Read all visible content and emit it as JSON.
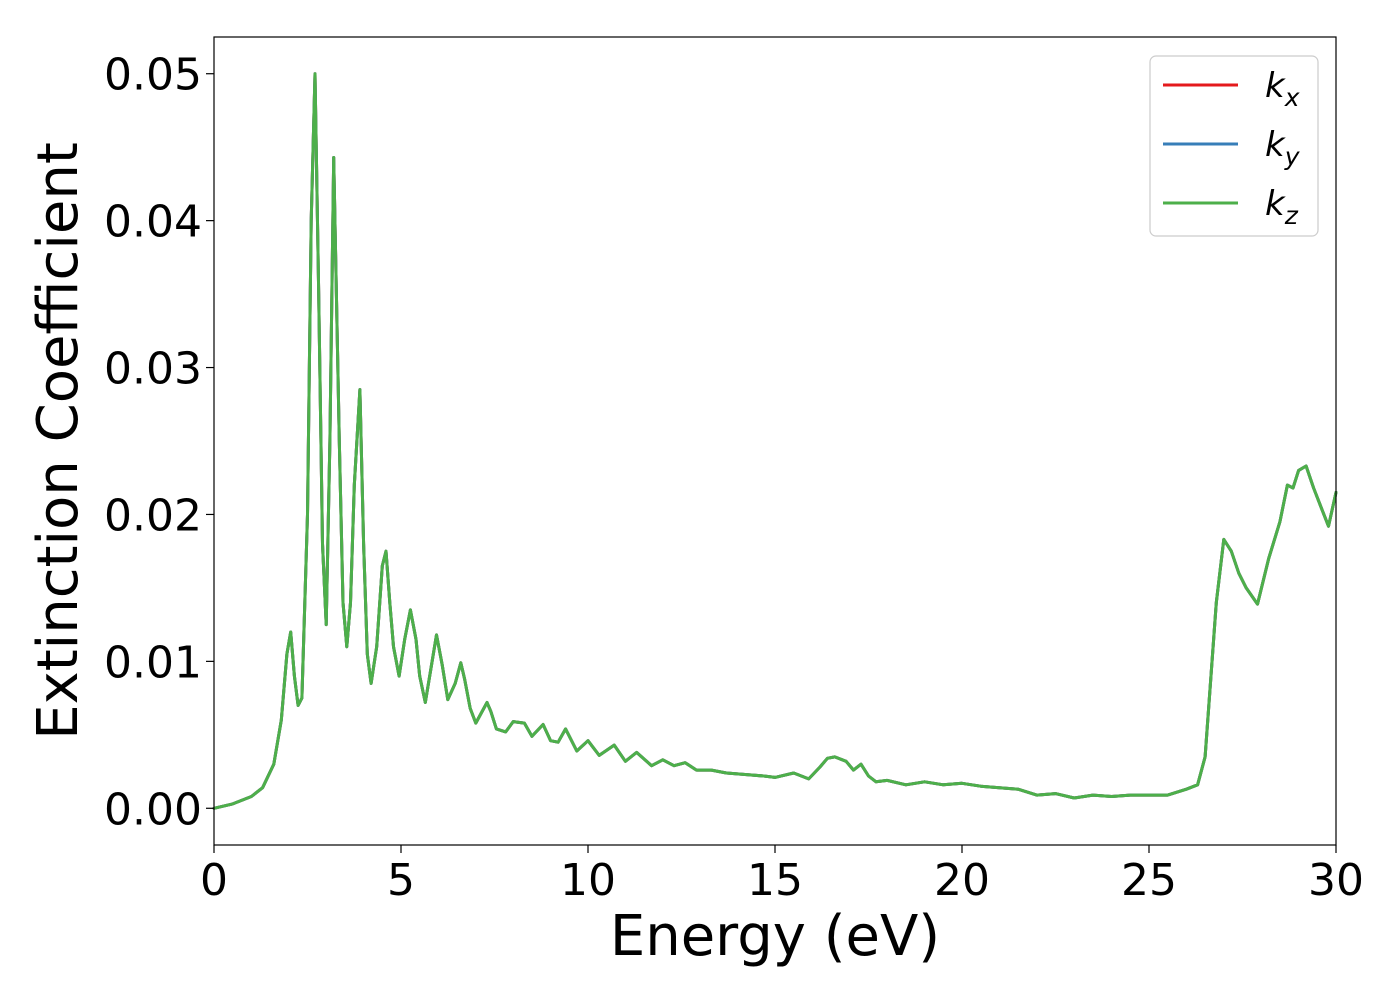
{
  "chart_data": {
    "type": "line",
    "xlabel": "Energy (eV)",
    "ylabel": "Extinction Coefficient",
    "xlim": [
      0,
      30
    ],
    "ylim": [
      -0.0025,
      0.0525
    ],
    "xticks": [
      0,
      5,
      10,
      15,
      20,
      25,
      30
    ],
    "xtick_labels": [
      "0",
      "5",
      "10",
      "15",
      "20",
      "25",
      "30"
    ],
    "yticks": [
      0.0,
      0.01,
      0.02,
      0.03,
      0.04,
      0.05
    ],
    "ytick_labels": [
      "0.00",
      "0.01",
      "0.02",
      "0.03",
      "0.04",
      "0.05"
    ],
    "grid": false,
    "legend_position": "top-right",
    "x": [
      0.0,
      0.5,
      1.0,
      1.3,
      1.6,
      1.8,
      1.95,
      2.05,
      2.15,
      2.25,
      2.35,
      2.5,
      2.6,
      2.7,
      2.8,
      2.9,
      3.0,
      3.1,
      3.2,
      3.35,
      3.45,
      3.55,
      3.65,
      3.75,
      3.9,
      4.0,
      4.1,
      4.2,
      4.35,
      4.5,
      4.6,
      4.7,
      4.8,
      4.95,
      5.1,
      5.25,
      5.4,
      5.5,
      5.65,
      5.8,
      5.95,
      6.1,
      6.25,
      6.45,
      6.6,
      6.7,
      6.85,
      7.0,
      7.3,
      7.4,
      7.55,
      7.8,
      8.0,
      8.3,
      8.5,
      8.8,
      9.0,
      9.2,
      9.4,
      9.7,
      10.0,
      10.3,
      10.7,
      11.0,
      11.3,
      11.7,
      12.0,
      12.3,
      12.6,
      12.9,
      13.3,
      13.7,
      14.2,
      14.7,
      15.0,
      15.5,
      15.9,
      16.2,
      16.4,
      16.6,
      16.9,
      17.1,
      17.3,
      17.5,
      17.7,
      18.0,
      18.5,
      19.0,
      19.5,
      20.0,
      20.5,
      21.0,
      21.5,
      22.0,
      22.5,
      23.0,
      23.5,
      24.0,
      24.5,
      25.0,
      25.5,
      26.0,
      26.3,
      26.5,
      26.8,
      27.0,
      27.2,
      27.4,
      27.6,
      27.9,
      28.2,
      28.5,
      28.7,
      28.85,
      29.0,
      29.2,
      29.4,
      29.6,
      29.8,
      30.0
    ],
    "series": [
      {
        "name": "k_x",
        "color": "#e41a1c",
        "y": [
          0.0,
          0.0003,
          0.0008,
          0.0014,
          0.003,
          0.006,
          0.0105,
          0.012,
          0.009,
          0.007,
          0.0075,
          0.02,
          0.04,
          0.05,
          0.035,
          0.018,
          0.0125,
          0.025,
          0.0443,
          0.025,
          0.014,
          0.011,
          0.014,
          0.022,
          0.0285,
          0.018,
          0.0105,
          0.0085,
          0.011,
          0.0165,
          0.0175,
          0.014,
          0.011,
          0.009,
          0.0115,
          0.0135,
          0.0115,
          0.009,
          0.0072,
          0.0095,
          0.0118,
          0.0098,
          0.0074,
          0.0085,
          0.0099,
          0.0088,
          0.0068,
          0.0058,
          0.0072,
          0.0066,
          0.0054,
          0.0052,
          0.0059,
          0.0058,
          0.0049,
          0.0057,
          0.0046,
          0.0045,
          0.0054,
          0.0039,
          0.0046,
          0.0036,
          0.0043,
          0.0032,
          0.0038,
          0.0029,
          0.0033,
          0.0029,
          0.0031,
          0.0026,
          0.0026,
          0.0024,
          0.0023,
          0.0022,
          0.0021,
          0.0024,
          0.002,
          0.0028,
          0.0034,
          0.0035,
          0.0032,
          0.0026,
          0.003,
          0.0022,
          0.0018,
          0.0019,
          0.0016,
          0.0018,
          0.0016,
          0.0017,
          0.0015,
          0.0014,
          0.0013,
          0.0009,
          0.001,
          0.0007,
          0.0009,
          0.0008,
          0.0009,
          0.0009,
          0.0009,
          0.0013,
          0.0016,
          0.0035,
          0.014,
          0.0183,
          0.0175,
          0.016,
          0.015,
          0.0139,
          0.017,
          0.0195,
          0.022,
          0.0218,
          0.023,
          0.0233,
          0.0218,
          0.0205,
          0.0192,
          0.0215
        ]
      },
      {
        "name": "k_y",
        "color": "#377eb8",
        "y": [
          0.0,
          0.0003,
          0.0008,
          0.0014,
          0.003,
          0.006,
          0.0105,
          0.012,
          0.009,
          0.007,
          0.0075,
          0.02,
          0.04,
          0.05,
          0.035,
          0.018,
          0.0125,
          0.025,
          0.0443,
          0.025,
          0.014,
          0.011,
          0.014,
          0.022,
          0.0285,
          0.018,
          0.0105,
          0.0085,
          0.011,
          0.0165,
          0.0175,
          0.014,
          0.011,
          0.009,
          0.0115,
          0.0135,
          0.0115,
          0.009,
          0.0072,
          0.0095,
          0.0118,
          0.0098,
          0.0074,
          0.0085,
          0.0099,
          0.0088,
          0.0068,
          0.0058,
          0.0072,
          0.0066,
          0.0054,
          0.0052,
          0.0059,
          0.0058,
          0.0049,
          0.0057,
          0.0046,
          0.0045,
          0.0054,
          0.0039,
          0.0046,
          0.0036,
          0.0043,
          0.0032,
          0.0038,
          0.0029,
          0.0033,
          0.0029,
          0.0031,
          0.0026,
          0.0026,
          0.0024,
          0.0023,
          0.0022,
          0.0021,
          0.0024,
          0.002,
          0.0028,
          0.0034,
          0.0035,
          0.0032,
          0.0026,
          0.003,
          0.0022,
          0.0018,
          0.0019,
          0.0016,
          0.0018,
          0.0016,
          0.0017,
          0.0015,
          0.0014,
          0.0013,
          0.0009,
          0.001,
          0.0007,
          0.0009,
          0.0008,
          0.0009,
          0.0009,
          0.0009,
          0.0013,
          0.0016,
          0.0035,
          0.014,
          0.0183,
          0.0175,
          0.016,
          0.015,
          0.0139,
          0.017,
          0.0195,
          0.022,
          0.0218,
          0.023,
          0.0233,
          0.0218,
          0.0205,
          0.0192,
          0.0215
        ]
      },
      {
        "name": "k_z",
        "color": "#4daf4a",
        "y": [
          0.0,
          0.0003,
          0.0008,
          0.0014,
          0.003,
          0.006,
          0.0105,
          0.012,
          0.009,
          0.007,
          0.0075,
          0.02,
          0.04,
          0.05,
          0.035,
          0.018,
          0.0125,
          0.025,
          0.0443,
          0.025,
          0.014,
          0.011,
          0.014,
          0.022,
          0.0285,
          0.018,
          0.0105,
          0.0085,
          0.011,
          0.0165,
          0.0175,
          0.014,
          0.011,
          0.009,
          0.0115,
          0.0135,
          0.0115,
          0.009,
          0.0072,
          0.0095,
          0.0118,
          0.0098,
          0.0074,
          0.0085,
          0.0099,
          0.0088,
          0.0068,
          0.0058,
          0.0072,
          0.0066,
          0.0054,
          0.0052,
          0.0059,
          0.0058,
          0.0049,
          0.0057,
          0.0046,
          0.0045,
          0.0054,
          0.0039,
          0.0046,
          0.0036,
          0.0043,
          0.0032,
          0.0038,
          0.0029,
          0.0033,
          0.0029,
          0.0031,
          0.0026,
          0.0026,
          0.0024,
          0.0023,
          0.0022,
          0.0021,
          0.0024,
          0.002,
          0.0028,
          0.0034,
          0.0035,
          0.0032,
          0.0026,
          0.003,
          0.0022,
          0.0018,
          0.0019,
          0.0016,
          0.0018,
          0.0016,
          0.0017,
          0.0015,
          0.0014,
          0.0013,
          0.0009,
          0.001,
          0.0007,
          0.0009,
          0.0008,
          0.0009,
          0.0009,
          0.0009,
          0.0013,
          0.0016,
          0.0035,
          0.014,
          0.0183,
          0.0175,
          0.016,
          0.015,
          0.0139,
          0.017,
          0.0195,
          0.022,
          0.0218,
          0.023,
          0.0233,
          0.0218,
          0.0205,
          0.0192,
          0.0215
        ]
      }
    ],
    "legend": [
      {
        "base": "k",
        "sub": "x",
        "color": "#e41a1c"
      },
      {
        "base": "k",
        "sub": "y",
        "color": "#377eb8"
      },
      {
        "base": "k",
        "sub": "z",
        "color": "#4daf4a"
      }
    ]
  }
}
